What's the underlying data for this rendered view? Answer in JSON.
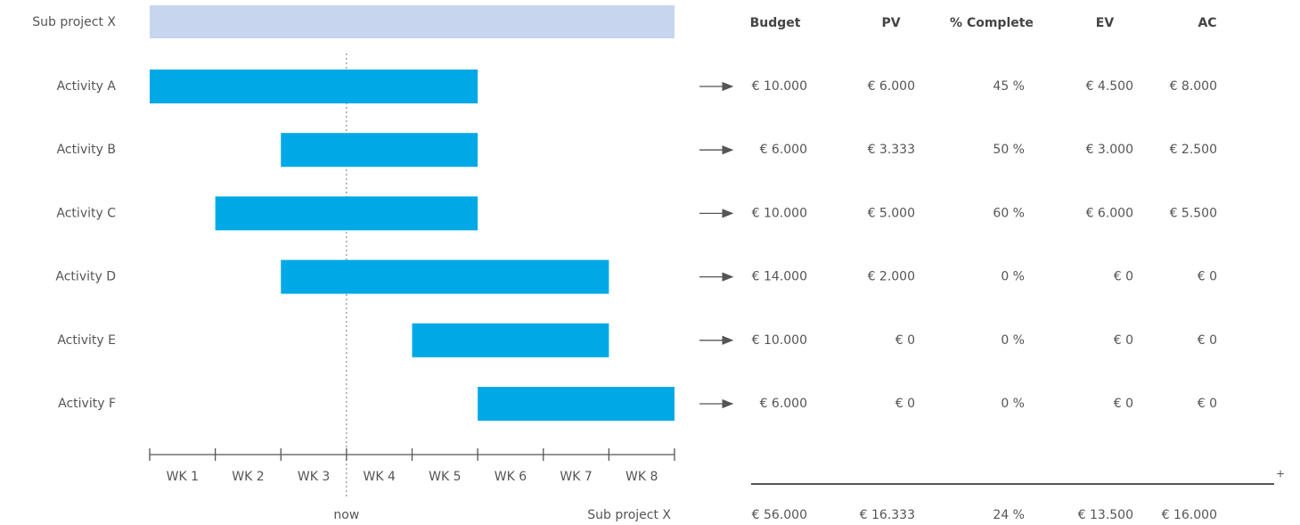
{
  "chart_data": {
    "type": "gantt",
    "summary": {
      "label": "Sub project X",
      "start": 0,
      "end": 8,
      "color": "#c8d5ee"
    },
    "tasks": [
      {
        "name": "Activity A",
        "start": 0,
        "end": 5
      },
      {
        "name": "Activity B",
        "start": 2,
        "end": 5
      },
      {
        "name": "Activity C",
        "start": 1,
        "end": 5
      },
      {
        "name": "Activity D",
        "start": 2,
        "end": 7
      },
      {
        "name": "Activity E",
        "start": 4,
        "end": 7
      },
      {
        "name": "Activity F",
        "start": 5,
        "end": 8
      }
    ],
    "color": "#00a9e6",
    "xlim": [
      0,
      8
    ],
    "xticks": [
      0,
      1,
      2,
      3,
      4,
      5,
      6,
      7,
      8
    ],
    "weeks": [
      "WK 1",
      "WK 2",
      "WK 3",
      "WK 4",
      "WK 5",
      "WK 6",
      "WK 7",
      "WK 8"
    ],
    "now": {
      "label": "now",
      "value": 3
    },
    "axis_label": "Sub project X"
  },
  "table": {
    "headers": [
      "Budget",
      "PV",
      "% Complete",
      "EV",
      "AC"
    ],
    "rows": [
      [
        "€ 10.000",
        "€ 6.000",
        "45 %",
        "€ 4.500",
        "€ 8.000"
      ],
      [
        "€ 6.000",
        "€ 3.333",
        "50 %",
        "€ 3.000",
        "€ 2.500"
      ],
      [
        "€ 10.000",
        "€ 5.000",
        "60 %",
        "€ 6.000",
        "€ 5.500"
      ],
      [
        "€ 14.000",
        "€ 2.000",
        "0 %",
        "€ 0",
        "€ 0"
      ],
      [
        "€ 10.000",
        "€ 0",
        "0 %",
        "€ 0",
        "€ 0"
      ],
      [
        "€ 6.000",
        "€ 0",
        "0 %",
        "€ 0",
        "€ 0"
      ]
    ],
    "plus": "+",
    "totals": [
      "€ 56.000",
      "€ 16.333",
      "24 %",
      "€ 13.500",
      "€ 16.000"
    ]
  }
}
